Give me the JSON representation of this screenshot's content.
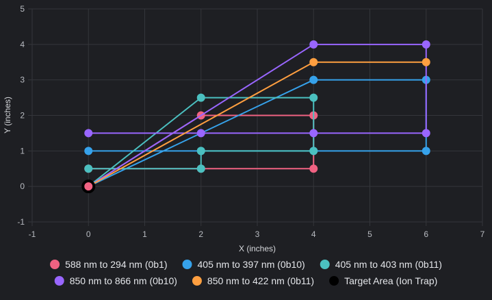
{
  "chart_data": {
    "type": "line",
    "title": "",
    "xlabel": "X (inches)",
    "ylabel": "Y (inches)",
    "xlim": [
      -1,
      7
    ],
    "ylim": [
      -1,
      5
    ],
    "xticks": [
      "-1",
      "0",
      "1",
      "2",
      "3",
      "4",
      "5",
      "6",
      "7"
    ],
    "yticks": [
      "-1",
      "0",
      "1",
      "2",
      "3",
      "4",
      "5"
    ],
    "grid": true,
    "legend_position": "bottom",
    "series": [
      {
        "name": "588 nm to 294 nm (0b1)",
        "color": "#f06282",
        "points": [
          [
            0,
            0
          ],
          [
            2,
            2
          ],
          [
            4,
            2
          ],
          [
            4,
            0.5
          ],
          [
            2,
            0.5
          ],
          [
            0,
            0.5
          ]
        ]
      },
      {
        "name": "405 nm to 397 nm (0b10)",
        "color": "#36a2eb",
        "points": [
          [
            0,
            0
          ],
          [
            4,
            3
          ],
          [
            6,
            3
          ],
          [
            6,
            1
          ],
          [
            4,
            1
          ],
          [
            2,
            1
          ],
          [
            0,
            1
          ]
        ]
      },
      {
        "name": "405 nm to 403 nm (0b11)",
        "color": "#4bc0c0",
        "points": [
          [
            0,
            0
          ],
          [
            2,
            2.5
          ],
          [
            4,
            2.5
          ],
          [
            4,
            1
          ],
          [
            2,
            1
          ],
          [
            2,
            0.5
          ],
          [
            0,
            0.5
          ]
        ]
      },
      {
        "name": "850 nm to 866 nm (0b10)",
        "color": "#9966ff",
        "points": [
          [
            0,
            0
          ],
          [
            4,
            4
          ],
          [
            6,
            4
          ],
          [
            6,
            1.5
          ],
          [
            4,
            1.5
          ],
          [
            2,
            1.5
          ],
          [
            0,
            1.5
          ]
        ]
      },
      {
        "name": "850 nm to 422 nm (0b11)",
        "color": "#ff9f40",
        "points": [
          [
            0,
            0
          ],
          [
            4,
            3.5
          ],
          [
            6,
            3.5
          ]
        ]
      },
      {
        "name": "Target Area (Ion Trap)",
        "color": "#000000",
        "points": [
          [
            0,
            0
          ]
        ]
      }
    ]
  }
}
